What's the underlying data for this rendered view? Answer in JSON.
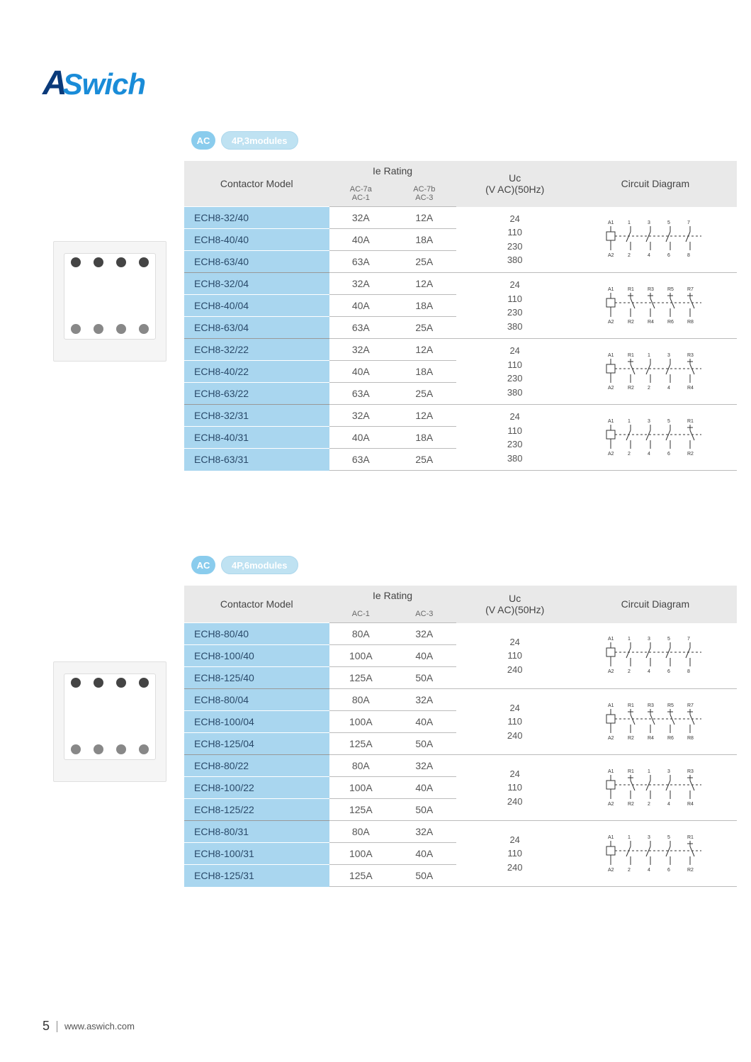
{
  "brand": {
    "a": "A",
    "swich": "Swich"
  },
  "footer": {
    "page": "5",
    "url": "www.aswich.com"
  },
  "colors": {
    "accent": "#1a8cd8",
    "header_bg": "#e9e9e9",
    "model_bg": "#a9d6ef",
    "border": "#bbbbbb",
    "pill_ac": "#2ba3e0",
    "pill_mod": "#8bcbe8"
  },
  "sections": [
    {
      "pills": {
        "ac": "AC",
        "mod": "4P,3modules"
      },
      "headers": {
        "model": "Contactor Model",
        "ie": "Ie Rating",
        "ac_sub1": "AC-7a\nAC-1",
        "ac_sub2": "AC-7b\nAC-3",
        "uc": "Uc\n(V AC)(50Hz)",
        "diag": "Circuit Diagram"
      },
      "uc_values": [
        "24",
        "110",
        "230",
        "380"
      ],
      "groups": [
        {
          "diagram": "4no",
          "diag_labels_top": [
            "A1",
            "1",
            "3",
            "5",
            "7"
          ],
          "diag_labels_bot": [
            "A2",
            "2",
            "4",
            "6",
            "8"
          ],
          "rows": [
            {
              "model": "ECH8-32/40",
              "a": "32A",
              "b": "12A"
            },
            {
              "model": "ECH8-40/40",
              "a": "40A",
              "b": "18A"
            },
            {
              "model": "ECH8-63/40",
              "a": "63A",
              "b": "25A"
            }
          ]
        },
        {
          "diagram": "4nc",
          "diag_labels_top": [
            "A1",
            "R1",
            "R3",
            "R5",
            "R7"
          ],
          "diag_labels_bot": [
            "A2",
            "R2",
            "R4",
            "R6",
            "R8"
          ],
          "rows": [
            {
              "model": "ECH8-32/04",
              "a": "32A",
              "b": "12A"
            },
            {
              "model": "ECH8-40/04",
              "a": "40A",
              "b": "18A"
            },
            {
              "model": "ECH8-63/04",
              "a": "63A",
              "b": "25A"
            }
          ]
        },
        {
          "diagram": "2no2nc",
          "diag_labels_top": [
            "A1",
            "R1",
            "1",
            "3",
            "R3"
          ],
          "diag_labels_bot": [
            "A2",
            "R2",
            "2",
            "4",
            "R4"
          ],
          "rows": [
            {
              "model": "ECH8-32/22",
              "a": "32A",
              "b": "12A"
            },
            {
              "model": "ECH8-40/22",
              "a": "40A",
              "b": "18A"
            },
            {
              "model": "ECH8-63/22",
              "a": "63A",
              "b": "25A"
            }
          ]
        },
        {
          "diagram": "3no1nc",
          "diag_labels_top": [
            "A1",
            "1",
            "3",
            "5",
            "R1"
          ],
          "diag_labels_bot": [
            "A2",
            "2",
            "4",
            "6",
            "R2"
          ],
          "rows": [
            {
              "model": "ECH8-32/31",
              "a": "32A",
              "b": "12A"
            },
            {
              "model": "ECH8-40/31",
              "a": "40A",
              "b": "18A"
            },
            {
              "model": "ECH8-63/31",
              "a": "63A",
              "b": "25A"
            }
          ]
        }
      ]
    },
    {
      "pills": {
        "ac": "AC",
        "mod": "4P,6modules"
      },
      "headers": {
        "model": "Contactor Model",
        "ie": "Ie Rating",
        "ac_sub1": "AC-1",
        "ac_sub2": "AC-3",
        "uc": "Uc\n(V AC)(50Hz)",
        "diag": "Circuit Diagram"
      },
      "uc_values": [
        "24",
        "110",
        "240"
      ],
      "groups": [
        {
          "diagram": "4no",
          "diag_labels_top": [
            "A1",
            "1",
            "3",
            "5",
            "7"
          ],
          "diag_labels_bot": [
            "A2",
            "2",
            "4",
            "6",
            "8"
          ],
          "rows": [
            {
              "model": "ECH8-80/40",
              "a": "80A",
              "b": "32A"
            },
            {
              "model": "ECH8-100/40",
              "a": "100A",
              "b": "40A"
            },
            {
              "model": "ECH8-125/40",
              "a": "125A",
              "b": "50A"
            }
          ]
        },
        {
          "diagram": "4nc",
          "diag_labels_top": [
            "A1",
            "R1",
            "R3",
            "R5",
            "R7"
          ],
          "diag_labels_bot": [
            "A2",
            "R2",
            "R4",
            "R6",
            "R8"
          ],
          "rows": [
            {
              "model": "ECH8-80/04",
              "a": "80A",
              "b": "32A"
            },
            {
              "model": "ECH8-100/04",
              "a": "100A",
              "b": "40A"
            },
            {
              "model": "ECH8-125/04",
              "a": "125A",
              "b": "50A"
            }
          ]
        },
        {
          "diagram": "2no2nc",
          "diag_labels_top": [
            "A1",
            "R1",
            "1",
            "3",
            "R3"
          ],
          "diag_labels_bot": [
            "A2",
            "R2",
            "2",
            "4",
            "R4"
          ],
          "rows": [
            {
              "model": "ECH8-80/22",
              "a": "80A",
              "b": "32A"
            },
            {
              "model": "ECH8-100/22",
              "a": "100A",
              "b": "40A"
            },
            {
              "model": "ECH8-125/22",
              "a": "125A",
              "b": "50A"
            }
          ]
        },
        {
          "diagram": "3no1nc",
          "diag_labels_top": [
            "A1",
            "1",
            "3",
            "5",
            "R1"
          ],
          "diag_labels_bot": [
            "A2",
            "2",
            "4",
            "6",
            "R2"
          ],
          "rows": [
            {
              "model": "ECH8-80/31",
              "a": "80A",
              "b": "32A"
            },
            {
              "model": "ECH8-100/31",
              "a": "100A",
              "b": "40A"
            },
            {
              "model": "ECH8-125/31",
              "a": "125A",
              "b": "50A"
            }
          ]
        }
      ]
    }
  ]
}
